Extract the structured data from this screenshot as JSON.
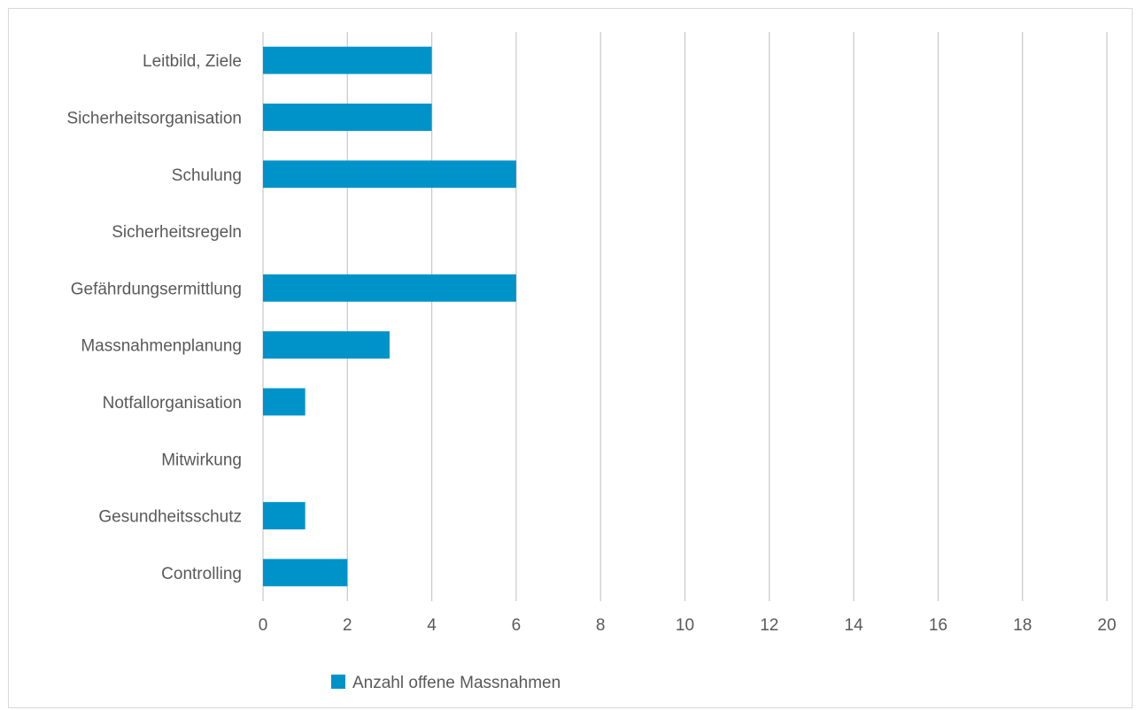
{
  "chart_data": {
    "type": "bar",
    "orientation": "horizontal",
    "categories": [
      "Leitbild, Ziele",
      "Sicherheitsorganisation",
      "Schulung",
      "Sicherheitsregeln",
      "Gefährdungsermittlung",
      "Massnahmenplanung",
      "Notfallorganisation",
      "Mitwirkung",
      "Gesundheitsschutz",
      "Controlling"
    ],
    "series": [
      {
        "name": "Anzahl offene Massnahmen",
        "values": [
          4,
          4,
          6,
          0,
          6,
          3,
          1,
          0,
          1,
          2
        ],
        "color": "#0093c9"
      }
    ],
    "xlim": [
      0,
      20
    ],
    "xticks": [
      "0",
      "2",
      "4",
      "6",
      "8",
      "10",
      "12",
      "14",
      "16",
      "18",
      "20"
    ],
    "grid": "vertical",
    "gridColor": "#c8c8c8",
    "legend_position": "bottom-left"
  }
}
